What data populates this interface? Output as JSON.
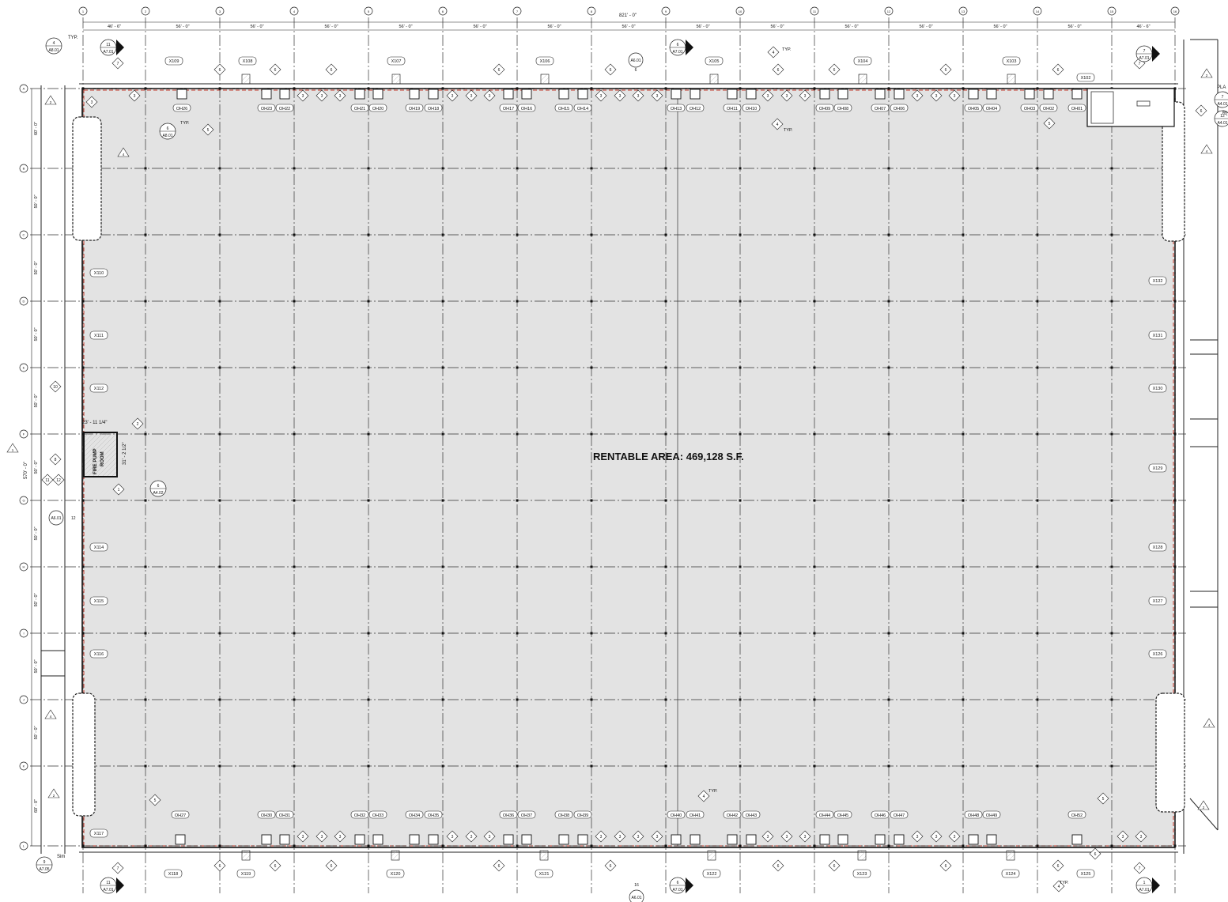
{
  "plan": {
    "rentable_area": "RENTABLE AREA: 469,128 S.F.",
    "overall_dimension": "821' - 0\"",
    "column_grid_labels": [
      "1",
      "2",
      "3",
      "4",
      "5",
      "6",
      "7",
      "8",
      "9",
      "10",
      "11",
      "12",
      "13",
      "14",
      "15",
      "16"
    ],
    "column_bay_dimensions": [
      "46' - 6\"",
      "56' - 0\"",
      "56' - 0\"",
      "56' - 0\"",
      "56' - 0\"",
      "56' - 0\"",
      "56' - 0\"",
      "56' - 0\"",
      "56' - 0\"",
      "56' - 0\"",
      "56' - 0\"",
      "56' - 0\"",
      "56' - 0\"",
      "56' - 0\"",
      "46' - 6\""
    ],
    "row_grid_labels": [
      "A",
      "B",
      "C",
      "D",
      "E",
      "F",
      "G",
      "H",
      "I",
      "J",
      "K",
      "L"
    ],
    "row_bay_dimensions": [
      "60' - 0\"",
      "50' - 0\"",
      "50' - 0\"",
      "50' - 0\"",
      "50' - 0\"",
      "50' - 0\"",
      "50' - 0\"",
      "50' - 0\"",
      "50' - 0\"",
      "50' - 0\"",
      "60' - 0\""
    ],
    "overall_row_dimension": "570' - 0\"",
    "fire_pump_room": {
      "label_line1": "FIRE PUMP",
      "label_line2": "ROOM",
      "width_dim": "23' - 11 1/4\"",
      "depth_dim": "31' - 2 1/2\""
    },
    "north_doors": [
      "OH26",
      "OH23",
      "OH22",
      "OH21",
      "OH20",
      "OH19",
      "OH18",
      "OH17",
      "OH16",
      "OH15",
      "OH14",
      "OH13",
      "OH12",
      "OH11",
      "OH10",
      "OH09",
      "OH08",
      "OH07",
      "OH06",
      "OH05",
      "OH04",
      "OH03",
      "OH02",
      "OH01"
    ],
    "south_doors": [
      "OH27",
      "OH30",
      "OH31",
      "OH32",
      "OH33",
      "OH34",
      "OH35",
      "OH36",
      "OH37",
      "OH38",
      "OH39",
      "OH40",
      "OH41",
      "OH42",
      "OH43",
      "OH44",
      "OH45",
      "OH46",
      "OH47",
      "OH48",
      "OH49",
      "OH52"
    ],
    "north_exits": [
      "X109",
      "X108",
      "X107",
      "X106",
      "X105",
      "X104",
      "X103",
      "X102"
    ],
    "south_exits": [
      "X118",
      "X119",
      "X120",
      "X121",
      "X122",
      "X123",
      "X124",
      "X125"
    ],
    "west_exits": [
      "X110",
      "X111",
      "X112",
      "X114",
      "X115",
      "X116",
      "X117"
    ],
    "east_exits": [
      "X132",
      "X131",
      "X130",
      "X129",
      "X128",
      "X127",
      "X126"
    ],
    "section_callouts": [
      {
        "num": "11",
        "ref": "A7.01"
      },
      {
        "num": "6",
        "ref": "A7.01"
      },
      {
        "num": "7",
        "ref": "A7.01"
      },
      {
        "num": "4",
        "ref": "A8.01"
      },
      {
        "num": "6",
        "ref": "A8.01"
      },
      {
        "num": "6",
        "ref": "A4.02"
      },
      {
        "num": "7",
        "ref": "A4.01"
      },
      {
        "num": "12",
        "ref": "A4.01"
      },
      {
        "num": "9",
        "ref": "A7.05"
      },
      {
        "num": "11",
        "ref": "A7.01"
      },
      {
        "num": "6",
        "ref": "A7.01"
      },
      {
        "num": "1",
        "ref": "A7.01"
      }
    ],
    "elevation_refs": [
      {
        "ref": "A6.01",
        "num": "6"
      },
      {
        "ref": "A6.01",
        "num": "16"
      },
      {
        "ref": "A6.01",
        "num": "12"
      }
    ],
    "typ_label": "TYP.",
    "sim_label": "Sim",
    "edge_labels": {
      "pla": "PLA",
      "ro": "R("
    }
  }
}
